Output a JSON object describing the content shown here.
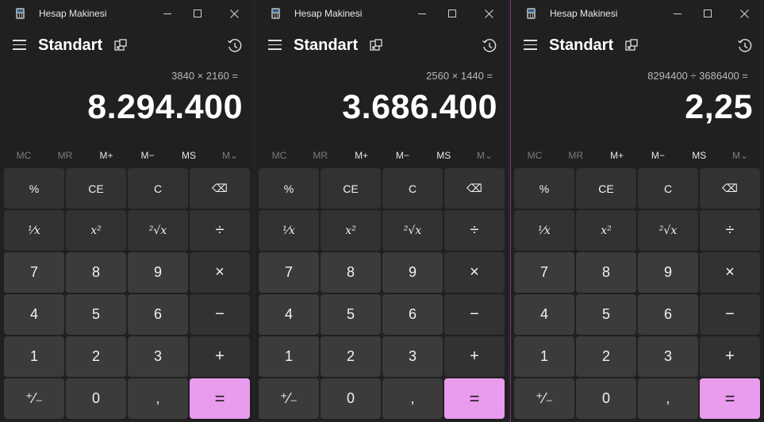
{
  "windows": [
    {
      "title": "Hesap Makinesi",
      "mode": "Standart",
      "expression": "3840 × 2160 =",
      "result": "8.294.400"
    },
    {
      "title": "Hesap Makinesi",
      "mode": "Standart",
      "expression": "2560 × 1440 =",
      "result": "3.686.400"
    },
    {
      "title": "Hesap Makinesi",
      "mode": "Standart",
      "expression": "8294400 ÷ 3686400 =",
      "result": "2,25"
    }
  ],
  "memory": [
    "MC",
    "MR",
    "M+",
    "M−",
    "MS",
    "M⌄"
  ],
  "keys": [
    {
      "label": "%",
      "name": "percent-button",
      "kind": "op"
    },
    {
      "label": "CE",
      "name": "clear-entry-button",
      "kind": "op"
    },
    {
      "label": "C",
      "name": "clear-button",
      "kind": "op"
    },
    {
      "label": "⌫",
      "name": "backspace-button",
      "kind": "op"
    },
    {
      "label": "¹⁄x",
      "name": "reciprocal-button",
      "kind": "op fn"
    },
    {
      "label": "x²",
      "name": "square-button",
      "kind": "op fn"
    },
    {
      "label": "²√x",
      "name": "square-root-button",
      "kind": "op fn"
    },
    {
      "label": "÷",
      "name": "divide-button",
      "kind": "op sym"
    },
    {
      "label": "7",
      "name": "digit-7-button",
      "kind": "num"
    },
    {
      "label": "8",
      "name": "digit-8-button",
      "kind": "num"
    },
    {
      "label": "9",
      "name": "digit-9-button",
      "kind": "num"
    },
    {
      "label": "×",
      "name": "multiply-button",
      "kind": "op sym"
    },
    {
      "label": "4",
      "name": "digit-4-button",
      "kind": "num"
    },
    {
      "label": "5",
      "name": "digit-5-button",
      "kind": "num"
    },
    {
      "label": "6",
      "name": "digit-6-button",
      "kind": "num"
    },
    {
      "label": "−",
      "name": "subtract-button",
      "kind": "op sym"
    },
    {
      "label": "1",
      "name": "digit-1-button",
      "kind": "num"
    },
    {
      "label": "2",
      "name": "digit-2-button",
      "kind": "num"
    },
    {
      "label": "3",
      "name": "digit-3-button",
      "kind": "num"
    },
    {
      "label": "+",
      "name": "add-button",
      "kind": "op sym"
    },
    {
      "label": "⁺⁄₋",
      "name": "negate-button",
      "kind": "num"
    },
    {
      "label": "0",
      "name": "digit-0-button",
      "kind": "num"
    },
    {
      "label": ",",
      "name": "decimal-button",
      "kind": "num"
    },
    {
      "label": "=",
      "name": "equals-button",
      "kind": "eq"
    }
  ],
  "colors": {
    "accent": "#e99bee",
    "background": "#202020",
    "number_key": "#3b3b3b",
    "operator_key": "#323232"
  },
  "icons": {
    "app": "calculator-icon",
    "menu": "hamburger-icon",
    "keep_on_top": "keep-on-top-icon",
    "history": "history-icon"
  }
}
